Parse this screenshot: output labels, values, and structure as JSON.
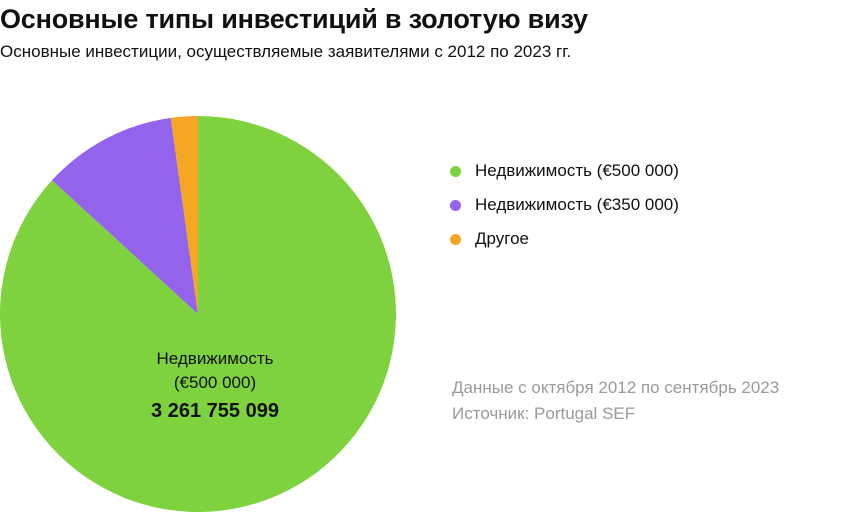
{
  "title": "Основные типы инвестиций в золотую визу",
  "subtitle": "Основные инвестиции, осуществляемые заявителями с 2012 по 2023 гг.",
  "notes": {
    "period": "Данные с октября 2012 по сентябрь 2023",
    "source": "Источник: Portugal SEF"
  },
  "chart_data": {
    "type": "pie",
    "legend_position": "right",
    "slices": [
      {
        "name": "Недвижимость (€500 000)",
        "value": 3261755099,
        "share": 0.868,
        "color": "#7ed23e"
      },
      {
        "name": "Недвижимость (€350 000)",
        "value": null,
        "share": 0.11,
        "color": "#9363ec"
      },
      {
        "name": "Другое",
        "value": null,
        "share": 0.022,
        "color": "#f5a623"
      }
    ],
    "data_labels": [
      {
        "slice": 0,
        "name_lines": [
          "Недвижимость",
          "(€500 000)"
        ],
        "value_text": "3 261 755 099"
      }
    ]
  }
}
